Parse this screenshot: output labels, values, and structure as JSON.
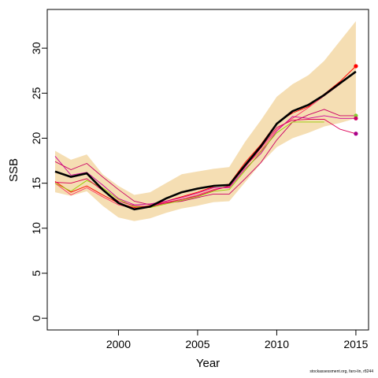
{
  "chart_data": {
    "type": "line",
    "xlabel": "Year",
    "ylabel": "SSB",
    "xlim": [
      1995.5,
      2015.8
    ],
    "ylim": [
      -1.3,
      34.3
    ],
    "x_ticks": [
      2000,
      2005,
      2010,
      2015
    ],
    "y_ticks": [
      0,
      5,
      10,
      15,
      20,
      25,
      30
    ],
    "grid": false,
    "colors": {
      "band": "#f5deb3",
      "main": "#000000",
      "retro": [
        "#ff0000",
        "#ff3366",
        "#cc0099",
        "#cc0066",
        "#99cc00",
        "#dd0055"
      ],
      "endpoints": [
        "#ff0000",
        "#88cc33",
        "#cc0066",
        "#aa0088"
      ]
    },
    "years": [
      1996,
      1997,
      1998,
      1999,
      2000,
      2001,
      2002,
      2003,
      2004,
      2005,
      2006,
      2007,
      2008,
      2009,
      2010,
      2011,
      2012,
      2013,
      2014,
      2015
    ],
    "confidence_band": {
      "upper": [
        18.6,
        17.6,
        18.2,
        16.0,
        14.7,
        13.7,
        14.0,
        15.0,
        16.0,
        16.3,
        16.6,
        16.8,
        19.6,
        22.0,
        24.6,
        26.0,
        27.0,
        28.6,
        30.8,
        33.0
      ],
      "lower": [
        14.0,
        13.6,
        14.1,
        12.5,
        11.2,
        10.8,
        11.1,
        11.7,
        12.2,
        12.5,
        12.9,
        13.0,
        15.1,
        17.2,
        19.0,
        20.0,
        20.6,
        21.3,
        21.7,
        22.2
      ]
    },
    "series": [
      {
        "values": [
          16.3,
          15.7,
          16.1,
          14.3,
          12.8,
          12.1,
          12.4,
          13.3,
          14.0,
          14.4,
          14.7,
          14.8,
          17.0,
          19.1,
          21.6,
          23.0,
          23.7,
          24.8,
          26.1,
          27.4
        ]
      },
      {
        "values": [
          15.2,
          14.0,
          14.7,
          13.7,
          12.8,
          12.3,
          12.5,
          13.0,
          13.5,
          14.0,
          14.6,
          14.9,
          17.3,
          19.3,
          21.7,
          22.8,
          23.5,
          24.9,
          26.3,
          28.0
        ]
      },
      {
        "values": [
          15.0,
          13.7,
          14.5,
          13.5,
          12.6,
          12.2,
          12.4,
          12.9,
          13.2,
          13.7,
          14.3,
          14.6,
          16.9,
          18.6,
          21.0,
          22.2,
          23.4,
          24.7,
          26.0,
          null
        ]
      },
      {
        "values": [
          18.0,
          15.9,
          16.2,
          14.8,
          13.3,
          12.6,
          12.7,
          13.0,
          13.4,
          13.9,
          14.5,
          14.5,
          16.6,
          18.3,
          20.8,
          22.4,
          22.2,
          22.5,
          22.2,
          22.2
        ]
      },
      {
        "values": [
          17.4,
          16.5,
          17.2,
          15.7,
          14.3,
          13.0,
          12.6,
          12.8,
          13.0,
          13.4,
          13.8,
          13.8,
          15.5,
          17.3,
          19.8,
          21.8,
          22.6,
          23.2,
          22.5,
          22.5
        ]
      },
      {
        "values": [
          15.0,
          14.1,
          15.3,
          14.5,
          13.2,
          12.4,
          12.3,
          12.7,
          13.1,
          13.5,
          14.1,
          14.3,
          16.4,
          18.5,
          20.6,
          21.8,
          21.8,
          21.8,
          null,
          null
        ]
      },
      {
        "values": [
          15.1,
          15.0,
          15.5,
          14.2,
          13.0,
          12.5,
          12.4,
          12.8,
          13.2,
          13.6,
          14.2,
          14.7,
          16.8,
          18.9,
          21.2,
          22.0,
          22.1,
          22.1,
          21.0,
          20.5
        ]
      }
    ],
    "endpoints": [
      {
        "x": 2015,
        "y": 28.0
      },
      {
        "x": 2015,
        "y": 22.5
      },
      {
        "x": 2015,
        "y": 22.2
      },
      {
        "x": 2015,
        "y": 20.5
      }
    ]
  },
  "footer_text": "stockassessment.org, faro-lin, r8244"
}
